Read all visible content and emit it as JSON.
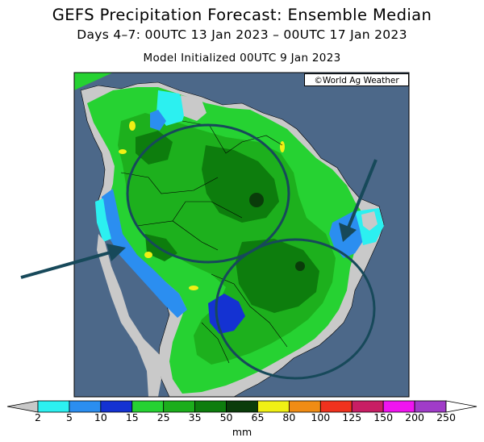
{
  "header": {
    "title": "GEFS Precipitation Forecast: Ensemble Median",
    "period": "Days 4–7: 00UTC 13 Jan 2023 – 00UTC 17 Jan 2023",
    "initialized": "Model Initialized 00UTC 9 Jan 2023"
  },
  "map": {
    "region": "South America",
    "credit": "©World Ag Weather",
    "ocean_color": "#4c6889",
    "outside_color": "#c9c9c9",
    "annotations": {
      "circles": 2,
      "arrows": 2,
      "color": "#17495a"
    }
  },
  "legend": {
    "unit": "mm",
    "ticks": [
      "2",
      "5",
      "10",
      "15",
      "25",
      "35",
      "50",
      "65",
      "80",
      "100",
      "125",
      "150",
      "200",
      "250"
    ],
    "colors": [
      "#c8c8c8",
      "#2cf0f0",
      "#2b8ef0",
      "#1432d2",
      "#26d232",
      "#1cae1c",
      "#0d7d0d",
      "#0a3c0a",
      "#f0f014",
      "#f08c14",
      "#f0321e",
      "#c81e64",
      "#f014f0",
      "#a03cc8",
      "#ffffff"
    ]
  }
}
